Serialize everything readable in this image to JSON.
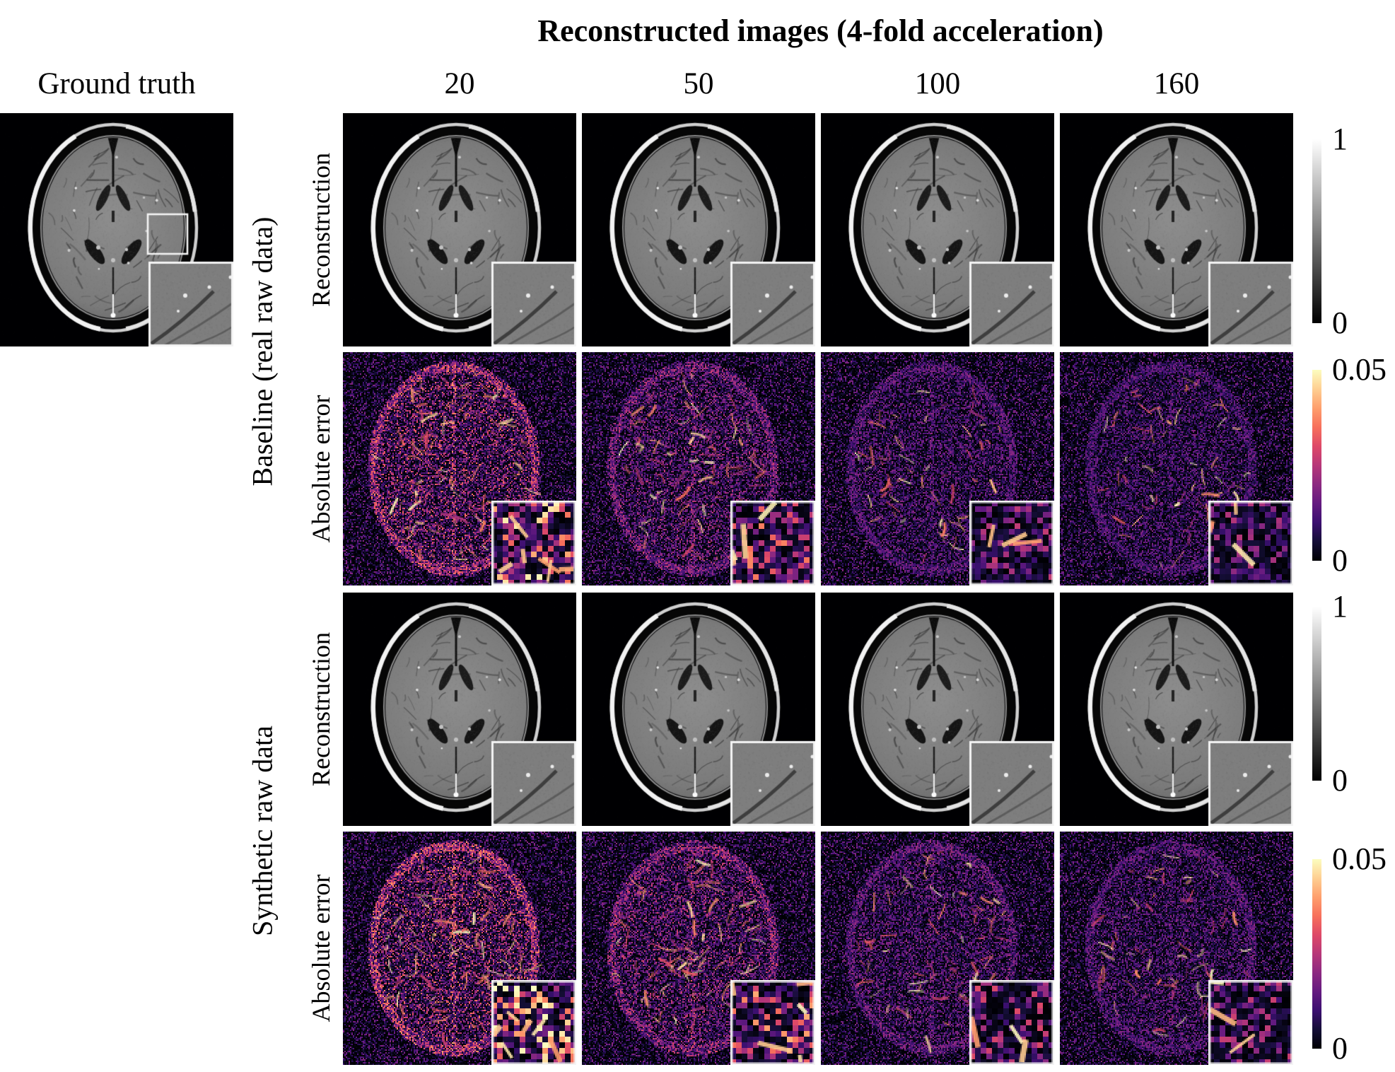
{
  "title": {
    "text": "Reconstructed images (4-fold acceleration)"
  },
  "ground_truth": {
    "label": "Ground truth"
  },
  "columns": [
    "20",
    "50",
    "100",
    "160"
  ],
  "row_groups": [
    {
      "label": "Baseline (real raw data)",
      "rows": [
        "Reconstruction",
        "Absolute error"
      ]
    },
    {
      "label": "Synthetic raw data",
      "rows": [
        "Reconstruction",
        "Absolute error"
      ]
    }
  ],
  "colorbars": [
    {
      "type": "grayscale",
      "top_label": "1",
      "bottom_label": "0"
    },
    {
      "type": "magma",
      "top_label": "0.05",
      "bottom_label": "0"
    },
    {
      "type": "grayscale",
      "top_label": "1",
      "bottom_label": "0"
    },
    {
      "type": "magma",
      "top_label": "0.05",
      "bottom_label": "0"
    }
  ],
  "palette": {
    "page_background": "#ffffff",
    "text_color": "#000000",
    "mri_background": "#000002",
    "grayscale_top": "#ffffff",
    "grayscale_bottom": "#000000",
    "inset_border": "#f4f4f4",
    "magma_anchors": [
      "#000004",
      "#140e36",
      "#3b0f70",
      "#641a80",
      "#8c2981",
      "#b73779",
      "#de4968",
      "#f7705c",
      "#fe9f6d",
      "#fecf92",
      "#fcfdbf"
    ]
  },
  "cells": [
    {
      "id": "gt",
      "kind": "mri",
      "seed": 5,
      "roi_box": true
    },
    {
      "id": "b-recon-20",
      "kind": "mri",
      "seed": 5
    },
    {
      "id": "b-recon-50",
      "kind": "mri",
      "seed": 5
    },
    {
      "id": "b-recon-100",
      "kind": "mri",
      "seed": 5
    },
    {
      "id": "b-recon-160",
      "kind": "mri",
      "seed": 5
    },
    {
      "id": "b-err-20",
      "kind": "error",
      "seed": 21,
      "intensity": 0.95,
      "inset_intensity": 1.0
    },
    {
      "id": "b-err-50",
      "kind": "error",
      "seed": 22,
      "intensity": 0.7,
      "inset_intensity": 0.75
    },
    {
      "id": "b-err-100",
      "kind": "error",
      "seed": 23,
      "intensity": 0.52,
      "inset_intensity": 0.55
    },
    {
      "id": "b-err-160",
      "kind": "error",
      "seed": 24,
      "intensity": 0.46,
      "inset_intensity": 0.5
    },
    {
      "id": "s-recon-20",
      "kind": "mri",
      "seed": 5
    },
    {
      "id": "s-recon-50",
      "kind": "mri",
      "seed": 5
    },
    {
      "id": "s-recon-100",
      "kind": "mri",
      "seed": 5
    },
    {
      "id": "s-recon-160",
      "kind": "mri",
      "seed": 5
    },
    {
      "id": "s-err-20",
      "kind": "error",
      "seed": 25,
      "intensity": 1.0,
      "inset_intensity": 1.1
    },
    {
      "id": "s-err-50",
      "kind": "error",
      "seed": 26,
      "intensity": 0.78,
      "inset_intensity": 0.85
    },
    {
      "id": "s-err-100",
      "kind": "error",
      "seed": 27,
      "intensity": 0.58,
      "inset_intensity": 0.6
    },
    {
      "id": "s-err-160",
      "kind": "error",
      "seed": 28,
      "intensity": 0.52,
      "inset_intensity": 0.55
    }
  ]
}
